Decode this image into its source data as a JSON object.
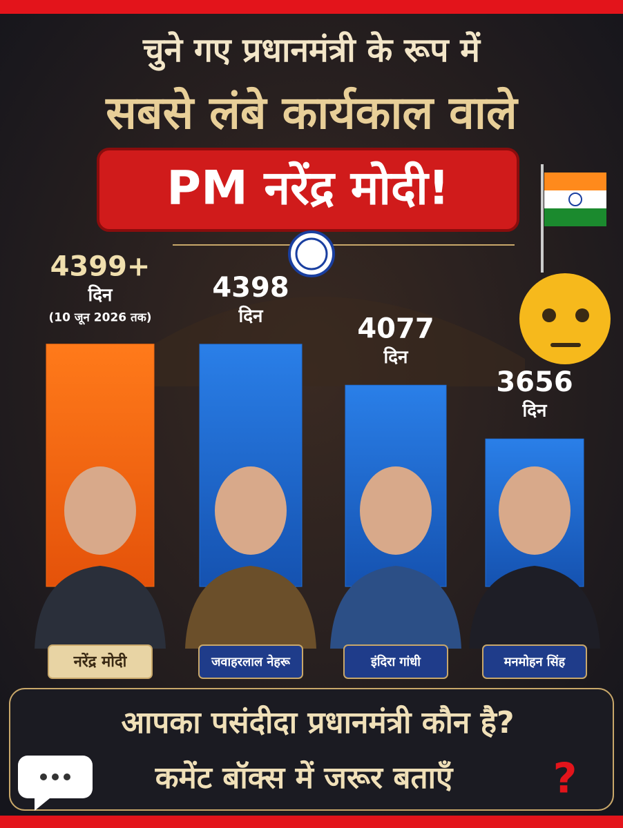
{
  "chart_data": {
    "type": "bar",
    "title": [
      "चुने गए प्रधानमंत्री के रूप में",
      "सबसे लंबे कार्यकाल वाले",
      "PM नरेंद्र मोदी!"
    ],
    "categories": [
      "नरेंद्र मोदी",
      "जवाहरलाल नेहरू",
      "इंदिरा गांधी",
      "मनमोहन सिंह"
    ],
    "values": [
      4399,
      4398,
      4077,
      3656
    ],
    "value_labels": [
      "4399+",
      "4398",
      "4077",
      "3656"
    ],
    "unit": "दिन",
    "note": "(10 जून 2026 तक)",
    "colors": [
      "#f26a10",
      "#1f6fd8",
      "#1f6fd8",
      "#1f6fd8"
    ],
    "ylim": [
      2500,
      4500
    ],
    "footer": [
      "आपका पसंदीदा प्रधानमंत्री कौन है?",
      "कमेंट बॉक्स में जरूर बताएँ"
    ]
  }
}
